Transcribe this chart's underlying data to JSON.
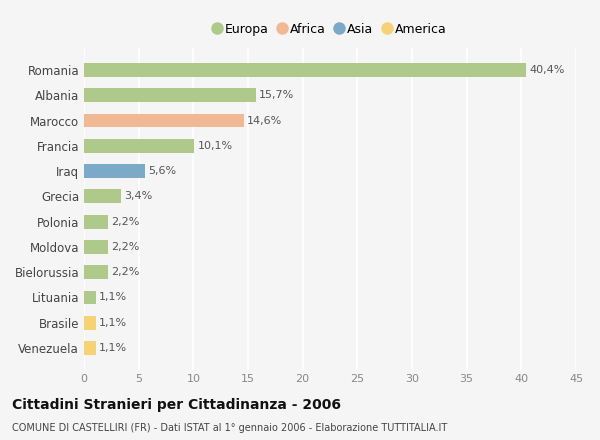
{
  "countries": [
    "Romania",
    "Albania",
    "Marocco",
    "Francia",
    "Iraq",
    "Grecia",
    "Polonia",
    "Moldova",
    "Bielorussia",
    "Lituania",
    "Brasile",
    "Venezuela"
  ],
  "values": [
    40.4,
    15.7,
    14.6,
    10.1,
    5.6,
    3.4,
    2.2,
    2.2,
    2.2,
    1.1,
    1.1,
    1.1
  ],
  "labels": [
    "40,4%",
    "15,7%",
    "14,6%",
    "10,1%",
    "5,6%",
    "3,4%",
    "2,2%",
    "2,2%",
    "2,2%",
    "1,1%",
    "1,1%",
    "1,1%"
  ],
  "continents": [
    "Europa",
    "Europa",
    "Africa",
    "Europa",
    "Asia",
    "Europa",
    "Europa",
    "Europa",
    "Europa",
    "Europa",
    "America",
    "America"
  ],
  "colors": {
    "Europa": "#aec98a",
    "Africa": "#f0b993",
    "Asia": "#7aaac8",
    "America": "#f5d275"
  },
  "legend_order": [
    "Europa",
    "Africa",
    "Asia",
    "America"
  ],
  "legend_colors": [
    "#aec98a",
    "#f0b993",
    "#7aaac8",
    "#f5d275"
  ],
  "xlim": [
    0,
    45
  ],
  "xticks": [
    0,
    5,
    10,
    15,
    20,
    25,
    30,
    35,
    40,
    45
  ],
  "title": "Cittadini Stranieri per Cittadinanza - 2006",
  "subtitle": "COMUNE DI CASTELLIRI (FR) - Dati ISTAT al 1° gennaio 2006 - Elaborazione TUTTITALIA.IT",
  "background_color": "#f5f5f5",
  "grid_color": "#ffffff",
  "bar_height": 0.55
}
